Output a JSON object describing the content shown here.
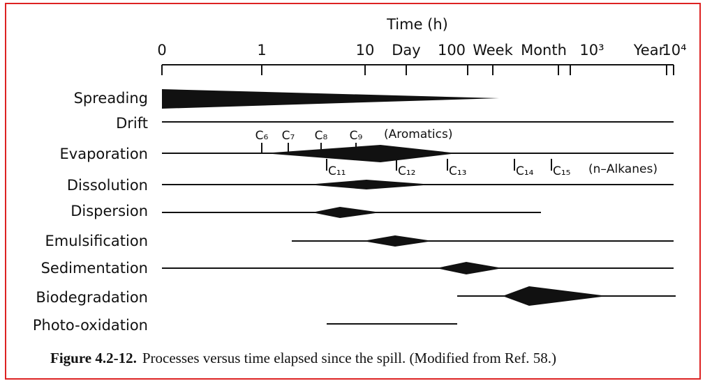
{
  "axis": {
    "title": "Time (h)",
    "labels": [
      "0",
      "1",
      "10",
      "Day",
      "100",
      "Week",
      "Month",
      "10³",
      "Year",
      "10⁴"
    ]
  },
  "processes": [
    "Spreading",
    "Drift",
    "Evaporation",
    "Dissolution",
    "Dispersion",
    "Emulsification",
    "Sedimentation",
    "Biodegradation",
    "Photo-oxidation"
  ],
  "aromatics": {
    "labels": [
      "C₆",
      "C₇",
      "C₈",
      "C₉"
    ],
    "title": "(Aromatics)"
  },
  "alkanes": {
    "labels": [
      "C₁₁",
      "C₁₂",
      "C₁₃",
      "C₁₄",
      "C₁₅"
    ],
    "title": "(n–Alkanes)"
  },
  "caption": {
    "label": "Figure 4.2-12.",
    "text": "Processes versus time elapsed since the spill. (Modified from Ref. 58.)"
  }
}
